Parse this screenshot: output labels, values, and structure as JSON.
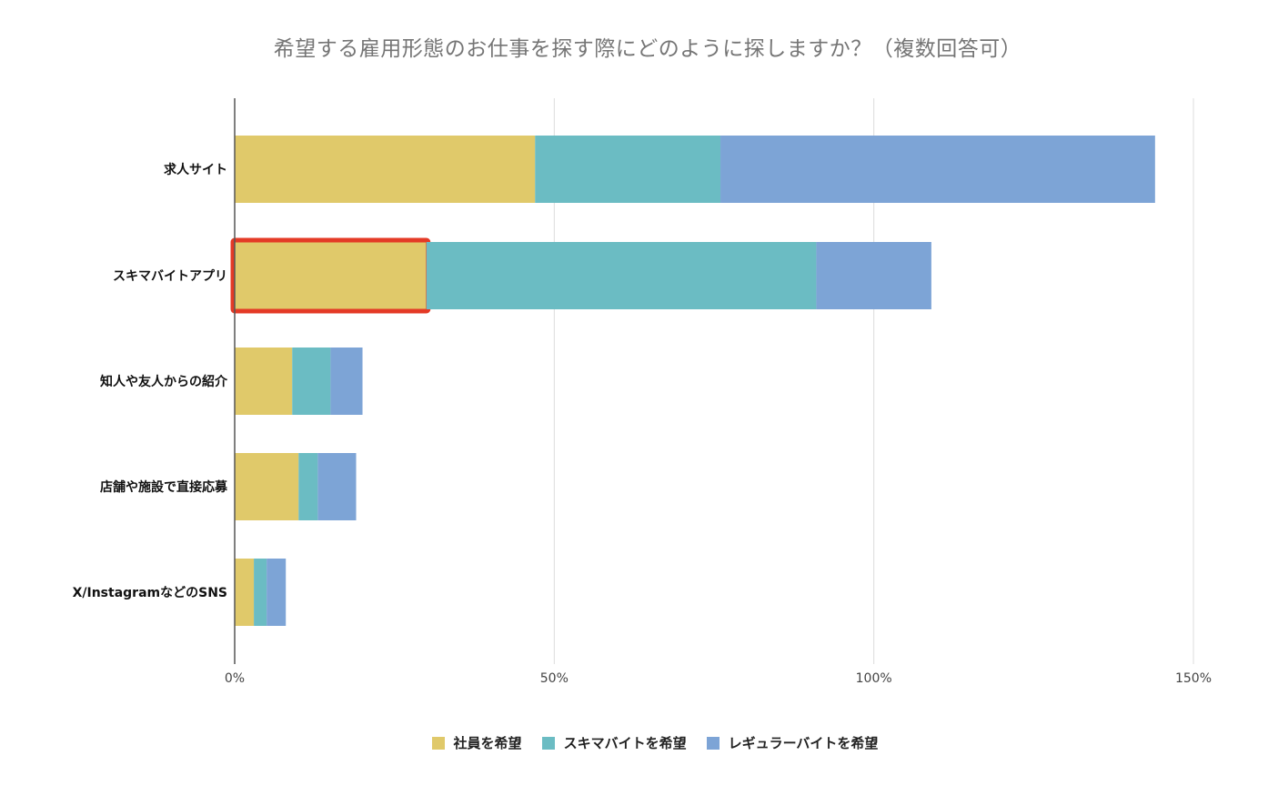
{
  "chart_data": {
    "type": "bar",
    "orientation": "horizontal",
    "stacked": true,
    "title": "希望する雇用形態のお仕事を探す際にどのように探しますか？（複数回答可）",
    "categories": [
      "求人サイト",
      "スキマバイトアプリ",
      "知人や友人からの紹介",
      "店舗や施設で直接応募",
      "X/InstagramなどのSNS"
    ],
    "series": [
      {
        "name": "社員を希望",
        "color": "#E0C96A",
        "values": [
          47,
          30,
          9,
          10,
          3
        ]
      },
      {
        "name": "スキマバイトを希望",
        "color": "#6BBCC3",
        "values": [
          29,
          61,
          6,
          3,
          2
        ]
      },
      {
        "name": "レギュラーバイトを希望",
        "color": "#7DA4D6",
        "values": [
          68,
          18,
          5,
          6,
          3
        ]
      }
    ],
    "x_ticks": [
      "0%",
      "50%",
      "100%",
      "150%"
    ],
    "xlim": [
      0,
      150
    ],
    "grid": true,
    "legend_position": "bottom",
    "highlight": {
      "category": "スキマバイトアプリ",
      "series": "社員を希望",
      "color": "#E43A26"
    }
  }
}
